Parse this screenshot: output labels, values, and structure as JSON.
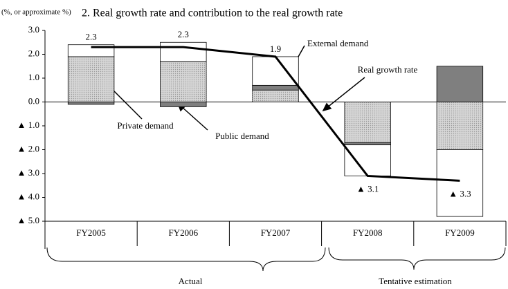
{
  "chart_data": {
    "type": "bar",
    "unit_label": "(%, or approximate %)",
    "title": "2. Real growth rate and contribution to the real growth rate",
    "categories": [
      "FY2005",
      "FY2006",
      "FY2007",
      "FY2008",
      "FY2009"
    ],
    "series": [
      {
        "name": "Private demand",
        "color": "#d6d6d6",
        "values": [
          1.9,
          1.7,
          0.5,
          -1.7,
          -2.0
        ]
      },
      {
        "name": "Public demand",
        "color": "#7f7f7f",
        "values": [
          -0.1,
          -0.2,
          0.2,
          -0.1,
          1.5
        ]
      },
      {
        "name": "External demand",
        "color": "#ffffff",
        "values": [
          0.5,
          0.8,
          1.2,
          -1.3,
          -2.8
        ]
      }
    ],
    "line": {
      "type": "line",
      "name": "Real growth rate",
      "color": "#000000",
      "values": [
        2.3,
        2.3,
        1.9,
        -3.1,
        -3.3
      ],
      "value_labels": [
        "2.3",
        "2.3",
        "1.9",
        "▲ 3.1",
        "▲ 3.3"
      ]
    },
    "ylim": [
      -5,
      3
    ],
    "yticks": [
      {
        "value": 3,
        "label": "3.0"
      },
      {
        "value": 2,
        "label": "2.0"
      },
      {
        "value": 1,
        "label": "1.0"
      },
      {
        "value": 0,
        "label": "0.0"
      },
      {
        "value": -1,
        "label": "▲ 1.0"
      },
      {
        "value": -2,
        "label": "▲ 2.0"
      },
      {
        "value": -3,
        "label": "▲ 3.0"
      },
      {
        "value": -4,
        "label": "▲ 4.0"
      },
      {
        "value": -5,
        "label": "▲ 5.0"
      }
    ],
    "groups": [
      "Actual",
      "Tentative estimation"
    ]
  }
}
